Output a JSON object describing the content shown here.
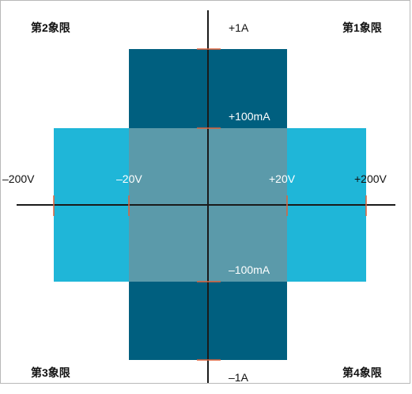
{
  "quadrants": {
    "q1": "第1象限",
    "q2": "第2象限",
    "q3": "第3象限",
    "q4": "第4象限"
  },
  "current_labels": {
    "top_outer": "+1A",
    "top_inner": "+100mA",
    "bottom_inner": "–100mA",
    "bottom_outer": "–1A"
  },
  "voltage_labels": {
    "left_outer": "–200V",
    "left_inner": "–20V",
    "right_inner": "+20V",
    "right_outer": "+200V"
  },
  "colors": {
    "dark_region": "#005f7f",
    "light_region": "#1fb6d8",
    "overlap_region": "#5b9aaa",
    "axis": "#1a1a1a",
    "tick": "#e0623a",
    "frame_border": "#b8b8b8"
  }
}
